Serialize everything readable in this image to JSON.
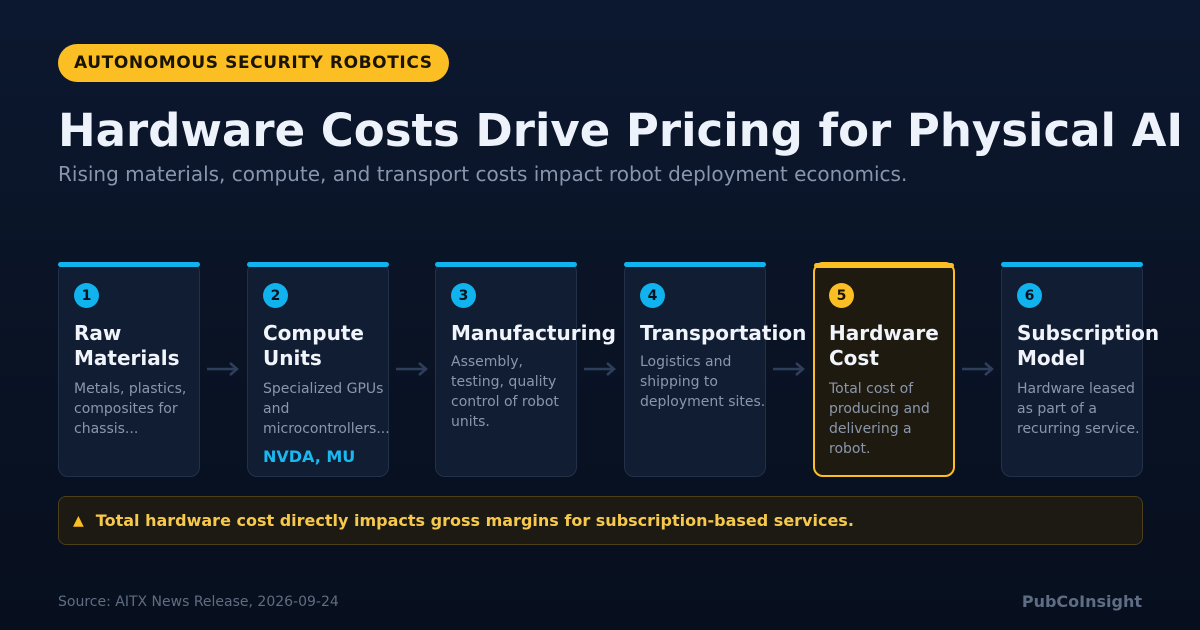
{
  "badge": "AUTONOMOUS SECURITY ROBOTICS",
  "title": "Hardware Costs Drive Pricing for Physical AI",
  "subtitle": "Rising materials, compute, and transport costs impact robot deployment economics.",
  "colors": {
    "accent": "#10b3ee",
    "highlight": "#fbbf24",
    "background": "#0a1426"
  },
  "steps": [
    {
      "number": "1",
      "name": "Raw\nMaterials",
      "desc": "Metals, plastics, composites for chassis...",
      "tickers": ""
    },
    {
      "number": "2",
      "name": "Compute\nUnits",
      "desc": "Specialized GPUs and microcontrollers...",
      "tickers": "NVDA, MU"
    },
    {
      "number": "3",
      "name": "Manufacturing",
      "desc": "Assembly, testing, quality control of robot units.",
      "tickers": ""
    },
    {
      "number": "4",
      "name": "Transportation",
      "desc": "Logistics and shipping to deployment sites.",
      "tickers": ""
    },
    {
      "number": "5",
      "name": "Hardware\nCost",
      "desc": "Total cost of producing and delivering a robot.",
      "tickers": ""
    },
    {
      "number": "6",
      "name": "Subscription\nModel",
      "desc": "Hardware leased as part of a recurring service.",
      "tickers": ""
    }
  ],
  "arrow_icon": "arrow-right-icon",
  "callout": {
    "icon": "warning-icon",
    "icon_glyph": "▲",
    "text": "Total hardware cost directly impacts gross margins for subscription-based services."
  },
  "footer": {
    "source": "Source: AITX News Release, 2026-09-24",
    "brand": "PubCoInsight"
  }
}
